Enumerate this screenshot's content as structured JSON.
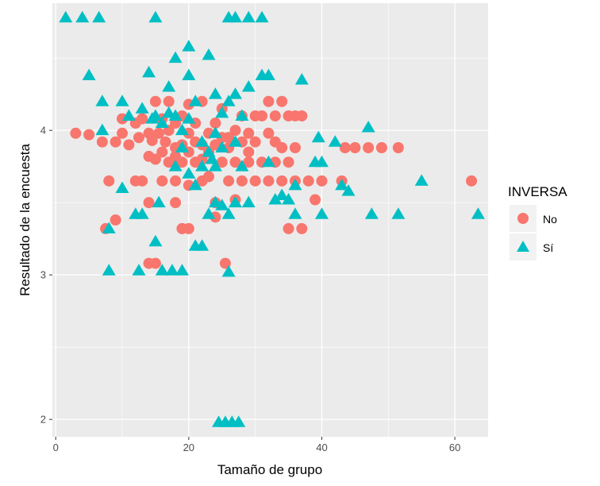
{
  "chart_data": {
    "type": "scatter",
    "xlabel": "Tamaño de grupo",
    "ylabel": "Resultado de la encuesta",
    "xlim": [
      -0.5,
      65
    ],
    "ylim": [
      1.88,
      4.88
    ],
    "x_ticks": [
      0,
      20,
      40,
      60
    ],
    "x_tick_labels": [
      "0",
      "20",
      "40",
      "60"
    ],
    "y_ticks": [
      2,
      3,
      4
    ],
    "y_tick_labels": [
      "2",
      "3",
      "4"
    ],
    "grid": true,
    "legend": {
      "title": "INVERSA",
      "position": "right",
      "entries": [
        "No",
        "Sí"
      ]
    },
    "colors": {
      "No": "#F8766D",
      "Sí": "#00BFC4",
      "panel": "#EBEBEB",
      "grid": "#FFFFFF"
    },
    "series": [
      {
        "name": "No",
        "shape": "circle",
        "points": [
          [
            3,
            3.98
          ],
          [
            5,
            3.97
          ],
          [
            7,
            3.92
          ],
          [
            7.5,
            3.32
          ],
          [
            8,
            3.65
          ],
          [
            9,
            3.92
          ],
          [
            9,
            3.38
          ],
          [
            10,
            3.98
          ],
          [
            10,
            4.08
          ],
          [
            11,
            3.9
          ],
          [
            12,
            4.05
          ],
          [
            12,
            3.65
          ],
          [
            12.5,
            3.95
          ],
          [
            13,
            3.65
          ],
          [
            13,
            4.08
          ],
          [
            14,
            3.82
          ],
          [
            14,
            3.98
          ],
          [
            14,
            3.5
          ],
          [
            14,
            3.08
          ],
          [
            14.5,
            3.93
          ],
          [
            15,
            3.8
          ],
          [
            15,
            4.2
          ],
          [
            15,
            3.08
          ],
          [
            15.5,
            3.98
          ],
          [
            16,
            3.85
          ],
          [
            16,
            3.65
          ],
          [
            16,
            4.08
          ],
          [
            16.5,
            3.92
          ],
          [
            17,
            3.78
          ],
          [
            17,
            4.0
          ],
          [
            17,
            4.2
          ],
          [
            18,
            3.82
          ],
          [
            18,
            3.65
          ],
          [
            18,
            4.05
          ],
          [
            18,
            3.5
          ],
          [
            18,
            3.88
          ],
          [
            19,
            3.9
          ],
          [
            19,
            4.1
          ],
          [
            19,
            3.32
          ],
          [
            19,
            3.78
          ],
          [
            20,
            3.85
          ],
          [
            20,
            3.98
          ],
          [
            20,
            3.62
          ],
          [
            20,
            4.18
          ],
          [
            20,
            3.32
          ],
          [
            21,
            3.92
          ],
          [
            21,
            3.78
          ],
          [
            21,
            4.05
          ],
          [
            22,
            3.9
          ],
          [
            22,
            3.65
          ],
          [
            22,
            4.2
          ],
          [
            22,
            3.8
          ],
          [
            23,
            3.98
          ],
          [
            23,
            3.68
          ],
          [
            23,
            3.85
          ],
          [
            24,
            4.05
          ],
          [
            24,
            3.9
          ],
          [
            24,
            3.5
          ],
          [
            24,
            3.4
          ],
          [
            25,
            3.95
          ],
          [
            25,
            3.78
          ],
          [
            25,
            4.15
          ],
          [
            25.5,
            3.08
          ],
          [
            26,
            3.95
          ],
          [
            26,
            3.65
          ],
          [
            26,
            3.88
          ],
          [
            27,
            4.0
          ],
          [
            27,
            3.78
          ],
          [
            27,
            3.52
          ],
          [
            28,
            3.92
          ],
          [
            28,
            4.1
          ],
          [
            28,
            3.65
          ],
          [
            29,
            3.98
          ],
          [
            29,
            3.85
          ],
          [
            29,
            3.78
          ],
          [
            30,
            4.1
          ],
          [
            30,
            3.92
          ],
          [
            30,
            3.65
          ],
          [
            31,
            4.1
          ],
          [
            31,
            3.78
          ],
          [
            32,
            3.98
          ],
          [
            32,
            4.2
          ],
          [
            32,
            3.65
          ],
          [
            33,
            4.1
          ],
          [
            33,
            3.78
          ],
          [
            33,
            3.92
          ],
          [
            34,
            4.2
          ],
          [
            34,
            3.88
          ],
          [
            34,
            3.65
          ],
          [
            35,
            3.78
          ],
          [
            35,
            4.1
          ],
          [
            35,
            3.32
          ],
          [
            36,
            4.1
          ],
          [
            36,
            3.88
          ],
          [
            36,
            3.65
          ],
          [
            37,
            3.32
          ],
          [
            37,
            4.1
          ],
          [
            38,
            3.65
          ],
          [
            39,
            3.52
          ],
          [
            40,
            3.65
          ],
          [
            43,
            3.65
          ],
          [
            43.5,
            3.88
          ],
          [
            45,
            3.88
          ],
          [
            47,
            3.88
          ],
          [
            49,
            3.88
          ],
          [
            51.5,
            3.88
          ],
          [
            62.5,
            3.65
          ]
        ]
      },
      {
        "name": "Sí",
        "shape": "triangle",
        "points": [
          [
            1.5,
            4.78
          ],
          [
            4,
            4.78
          ],
          [
            6.5,
            4.78
          ],
          [
            5,
            4.38
          ],
          [
            7,
            4.0
          ],
          [
            7,
            4.2
          ],
          [
            8,
            3.32
          ],
          [
            8,
            3.03
          ],
          [
            10,
            4.2
          ],
          [
            10,
            3.6
          ],
          [
            11,
            4.1
          ],
          [
            12,
            3.42
          ],
          [
            12.5,
            3.03
          ],
          [
            13,
            3.42
          ],
          [
            13,
            4.15
          ],
          [
            14,
            4.4
          ],
          [
            14.5,
            4.08
          ],
          [
            15,
            4.78
          ],
          [
            15,
            4.1
          ],
          [
            15,
            3.23
          ],
          [
            15.5,
            3.5
          ],
          [
            16,
            4.05
          ],
          [
            16,
            3.03
          ],
          [
            17,
            4.3
          ],
          [
            17,
            4.12
          ],
          [
            17.5,
            3.03
          ],
          [
            18,
            4.5
          ],
          [
            18,
            4.1
          ],
          [
            18,
            3.75
          ],
          [
            19,
            4.0
          ],
          [
            19,
            3.88
          ],
          [
            19,
            3.03
          ],
          [
            20,
            4.58
          ],
          [
            20,
            4.38
          ],
          [
            20,
            4.08
          ],
          [
            20,
            3.7
          ],
          [
            21,
            4.2
          ],
          [
            21,
            3.62
          ],
          [
            21,
            3.2
          ],
          [
            22,
            3.92
          ],
          [
            22,
            3.75
          ],
          [
            22,
            3.2
          ],
          [
            23,
            4.52
          ],
          [
            23,
            3.85
          ],
          [
            23,
            3.42
          ],
          [
            23.5,
            3.8
          ],
          [
            24,
            4.25
          ],
          [
            24,
            3.98
          ],
          [
            24,
            3.5
          ],
          [
            24,
            3.75
          ],
          [
            25,
            4.12
          ],
          [
            25,
            3.88
          ],
          [
            25,
            3.48
          ],
          [
            26,
            4.78
          ],
          [
            26,
            4.2
          ],
          [
            26,
            3.42
          ],
          [
            26,
            3.02
          ],
          [
            27,
            4.78
          ],
          [
            27,
            4.25
          ],
          [
            27,
            3.92
          ],
          [
            27,
            3.5
          ],
          [
            28,
            4.1
          ],
          [
            28,
            3.75
          ],
          [
            29,
            4.78
          ],
          [
            29,
            4.3
          ],
          [
            29,
            3.5
          ],
          [
            31,
            4.78
          ],
          [
            31,
            4.38
          ],
          [
            32,
            4.38
          ],
          [
            32,
            3.78
          ],
          [
            33,
            3.52
          ],
          [
            34,
            3.55
          ],
          [
            35,
            3.52
          ],
          [
            36,
            3.62
          ],
          [
            36,
            3.42
          ],
          [
            37,
            4.35
          ],
          [
            39,
            3.78
          ],
          [
            39.5,
            3.95
          ],
          [
            40,
            3.42
          ],
          [
            40,
            3.78
          ],
          [
            42,
            3.92
          ],
          [
            43,
            3.62
          ],
          [
            44,
            3.58
          ],
          [
            47,
            4.02
          ],
          [
            47.5,
            3.42
          ],
          [
            51.5,
            3.42
          ],
          [
            55,
            3.65
          ],
          [
            63.5,
            3.42
          ],
          [
            24.5,
            1.98
          ],
          [
            25.5,
            1.98
          ],
          [
            26.5,
            1.98
          ],
          [
            27.5,
            1.98
          ]
        ]
      }
    ]
  }
}
